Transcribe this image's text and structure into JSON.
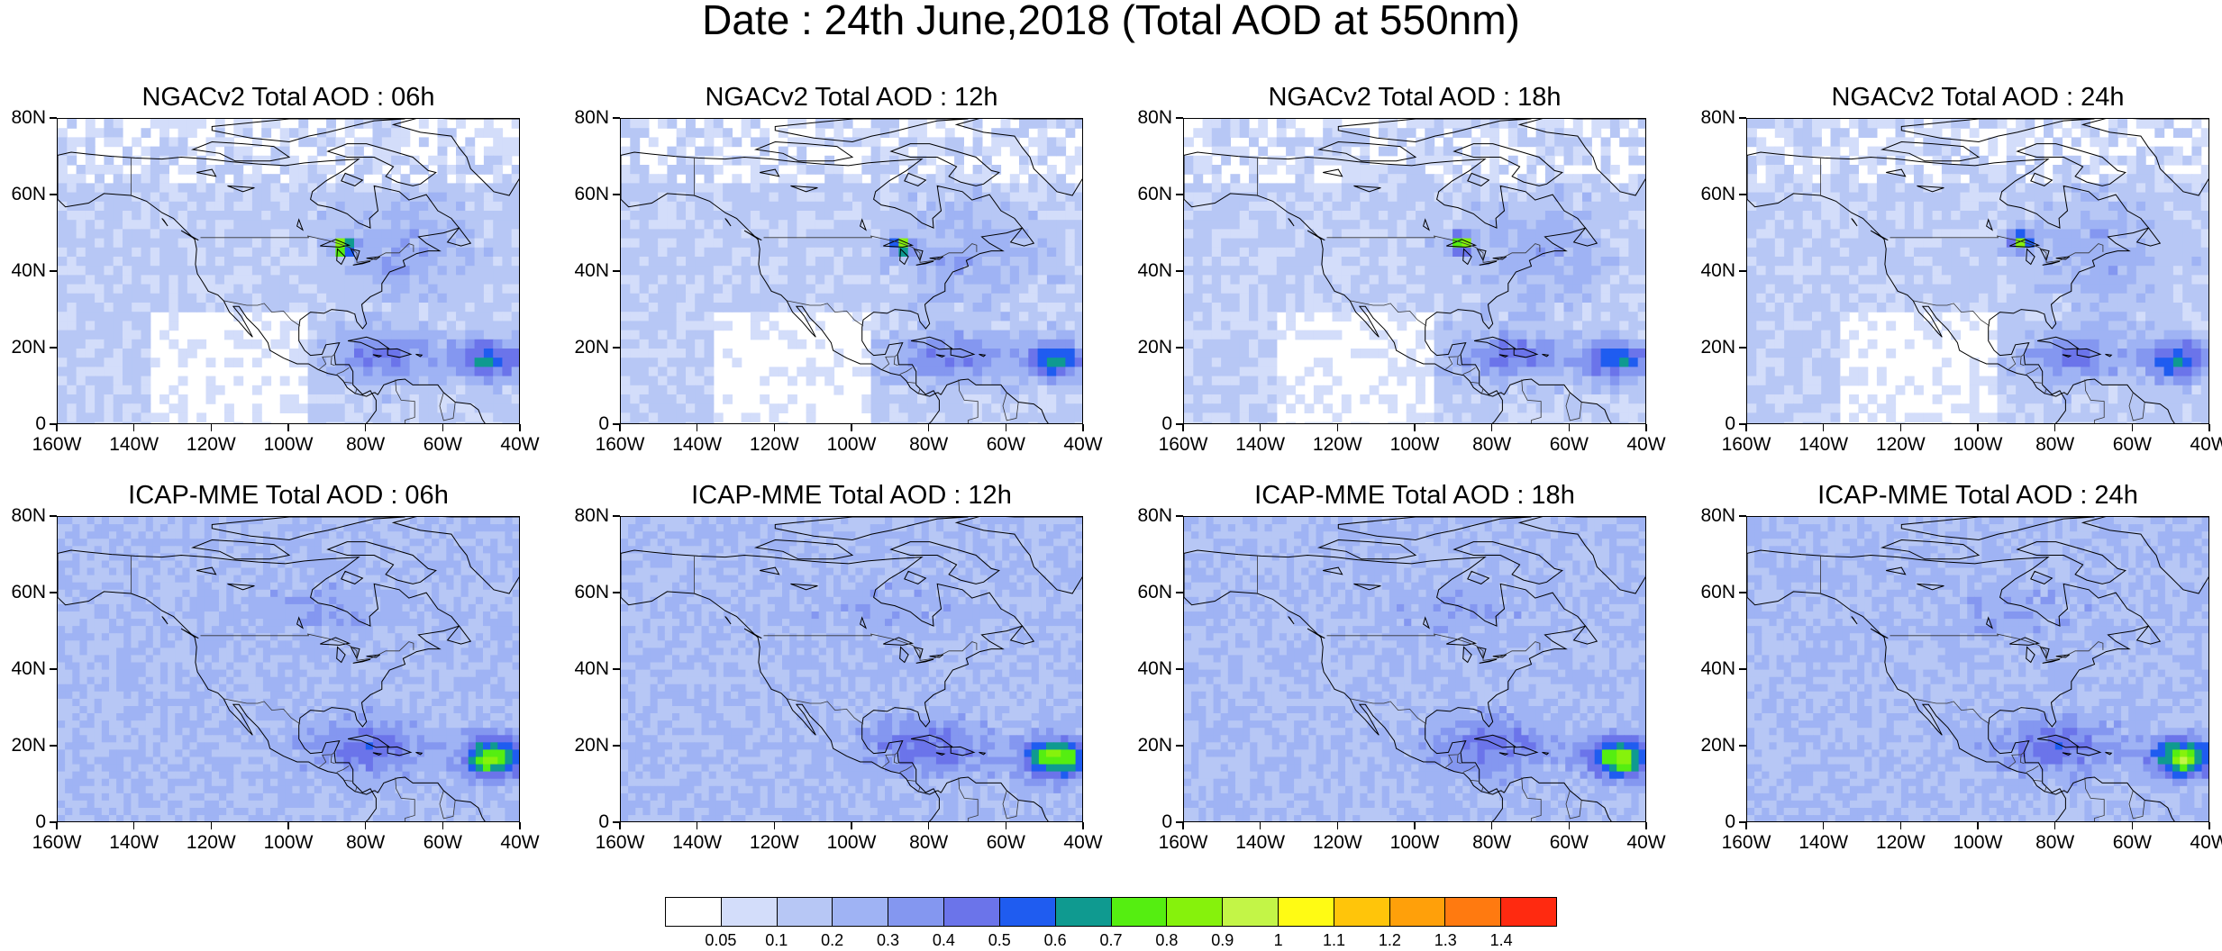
{
  "title": "Date : 24th June,2018 (Total AOD at 550nm)",
  "panels": [
    {
      "title": "NGACv2 Total AOD : 06h",
      "model": "NGACv2",
      "hour": 6
    },
    {
      "title": "NGACv2 Total AOD : 12h",
      "model": "NGACv2",
      "hour": 12
    },
    {
      "title": "NGACv2 Total AOD : 18h",
      "model": "NGACv2",
      "hour": 18
    },
    {
      "title": "NGACv2 Total AOD : 24h",
      "model": "NGACv2",
      "hour": 24
    },
    {
      "title": "ICAP-MME Total AOD : 06h",
      "model": "ICAP-MME",
      "hour": 6
    },
    {
      "title": "ICAP-MME Total AOD : 12h",
      "model": "ICAP-MME",
      "hour": 12
    },
    {
      "title": "ICAP-MME Total AOD : 18h",
      "model": "ICAP-MME",
      "hour": 18
    },
    {
      "title": "ICAP-MME Total AOD : 24h",
      "model": "ICAP-MME",
      "hour": 24
    }
  ],
  "map": {
    "lon_range": [
      -160,
      -40
    ],
    "lat_range": [
      0,
      80
    ],
    "lat_labels": [
      "80N",
      "60N",
      "40N",
      "20N",
      "0"
    ],
    "lon_labels": [
      "160W",
      "140W",
      "120W",
      "100W",
      "80W",
      "60W",
      "40W"
    ]
  },
  "colorbar": {
    "labels": [
      "0.05",
      "0.1",
      "0.2",
      "0.3",
      "0.4",
      "0.5",
      "0.6",
      "0.7",
      "0.8",
      "0.9",
      "1",
      "1.1",
      "1.2",
      "1.3",
      "1.4"
    ],
    "colors": [
      "#ffffff",
      "#d3ddfa",
      "#b7c7f5",
      "#9fb3f4",
      "#8497f0",
      "#6b74ea",
      "#1f5cf0",
      "#0f9a90",
      "#55ee11",
      "#86f20c",
      "#c3f547",
      "#fffb14",
      "#ffc50a",
      "#ffa00a",
      "#ff7a10",
      "#ff2a10"
    ]
  }
}
